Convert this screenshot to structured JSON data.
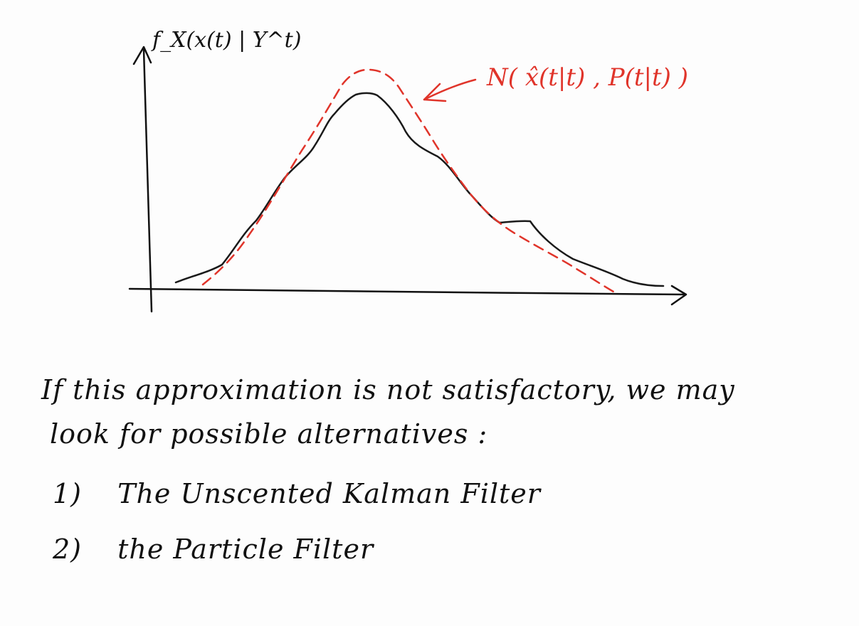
{
  "plot": {
    "y_axis_label": "f_X(x(t) | Y^t)",
    "gaussian_label": "N( x̂(t|t) , P(t|t) )",
    "curve_color": "#1a1a1a",
    "gaussian_color": "#e0342a"
  },
  "notes": {
    "line1": "If this approximation is not satisfactory, we may",
    "line2": "look for possible alternatives :"
  },
  "alternatives": [
    {
      "number": "1)",
      "text": "The Unscented Kalman Filter"
    },
    {
      "number": "2)",
      "text": "the Particle Filter"
    }
  ]
}
